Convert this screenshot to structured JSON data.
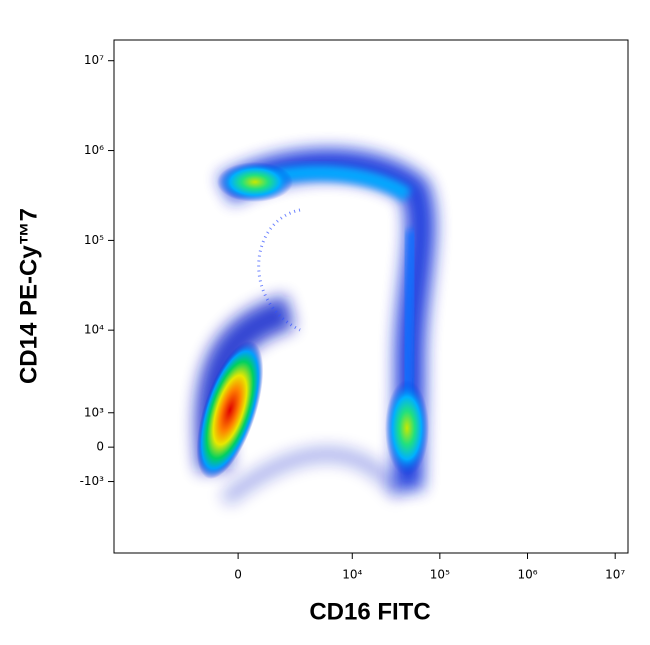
{
  "chart_data": {
    "type": "density",
    "x_label": "CD16 FITC",
    "y_label": "CD14 PE-Cy™7",
    "xlim": [
      -13000,
      14000000
    ],
    "ylim": [
      -7500,
      17000000
    ],
    "xticks": [
      {
        "value": 0,
        "label": "0"
      },
      {
        "value": 10000,
        "label": "10⁴"
      },
      {
        "value": 100000,
        "label": "10⁵"
      },
      {
        "value": 1000000,
        "label": "10⁶"
      },
      {
        "value": 10000000,
        "label": "10⁷"
      }
    ],
    "yticks": [
      {
        "value": -1000,
        "label": "-10³"
      },
      {
        "value": 0,
        "label": "0"
      },
      {
        "value": 1000,
        "label": "10³"
      },
      {
        "value": 10000,
        "label": "10⁴"
      },
      {
        "value": 100000,
        "label": "10⁵"
      },
      {
        "value": 1000000,
        "label": "10⁶"
      },
      {
        "value": 10000000,
        "label": "10⁷"
      }
    ]
  }
}
